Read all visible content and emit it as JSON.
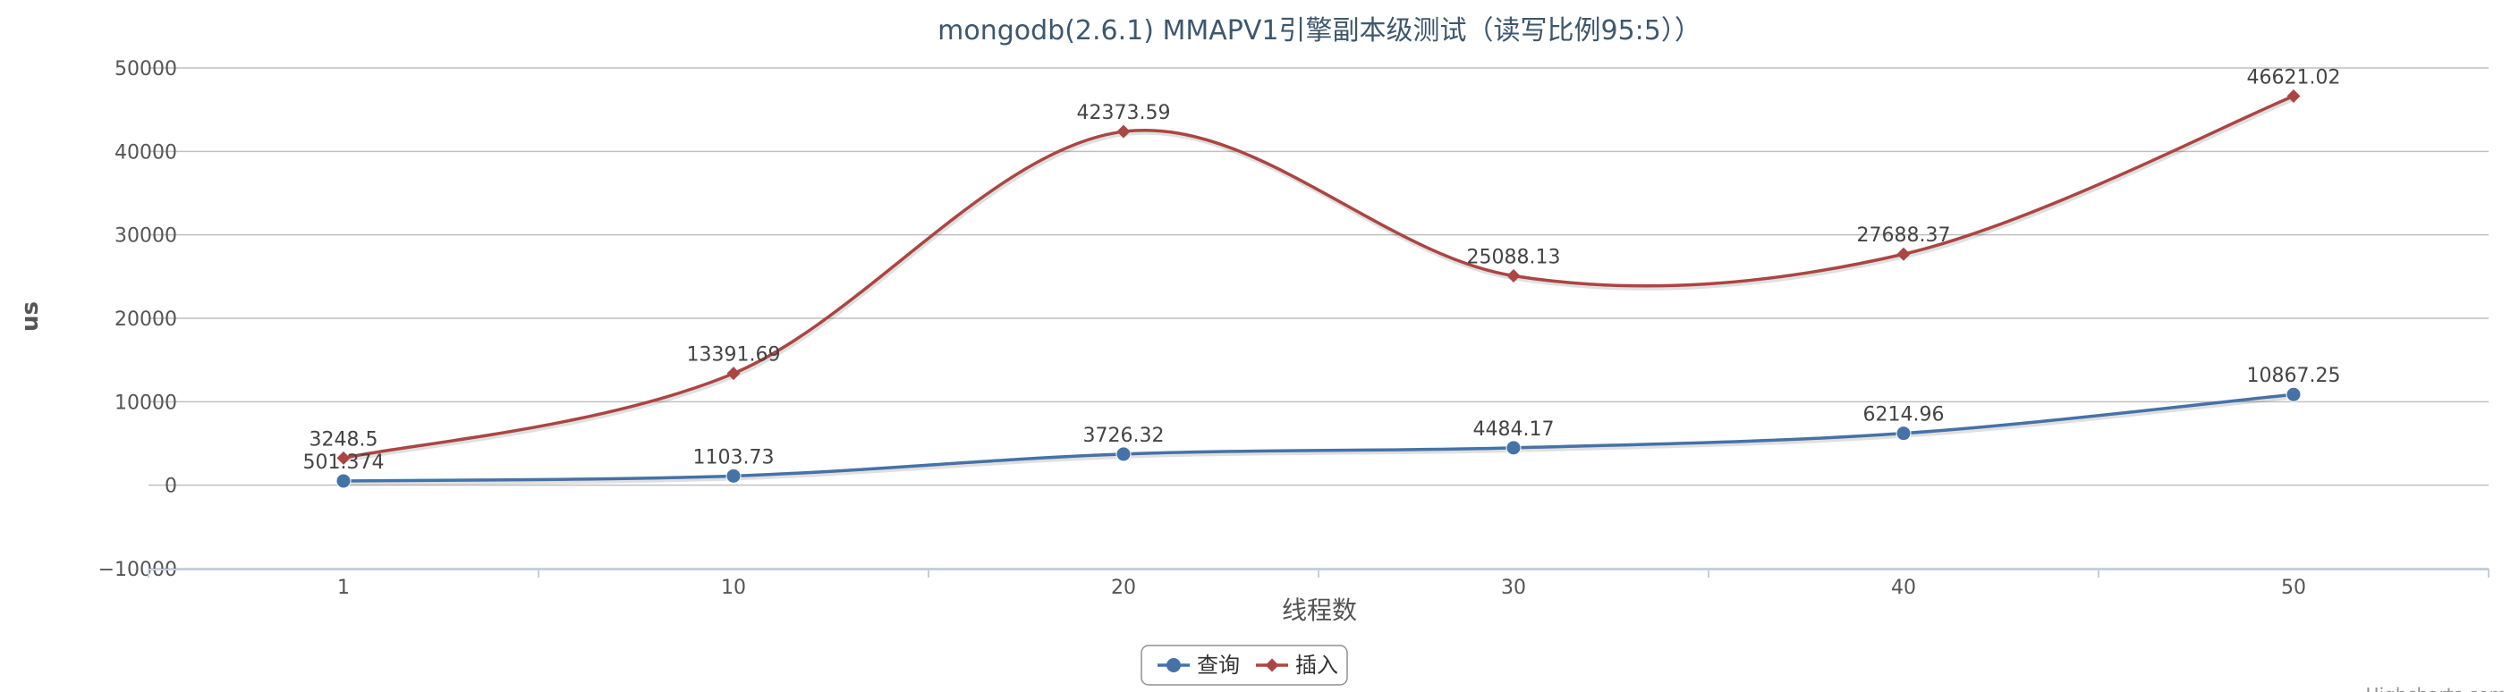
{
  "chart_data": {
    "type": "line",
    "title": "mongodb(2.6.1) MMAPV1引擎副本级测试（读写比例95:5））",
    "xlabel": "线程数",
    "ylabel": "us",
    "categories": [
      "1",
      "10",
      "20",
      "30",
      "40",
      "50"
    ],
    "ylim": [
      -10000,
      50000
    ],
    "yticks": [
      -10000,
      0,
      10000,
      20000,
      30000,
      40000,
      50000
    ],
    "grid": true,
    "legend_position": "bottom-center",
    "series": [
      {
        "name": "查询",
        "color": "#4572a7",
        "marker": "circle",
        "values": [
          501.374,
          1103.73,
          3726.32,
          4484.17,
          6214.96,
          10867.25
        ],
        "labels": [
          "501.374",
          "1103.73",
          "3726.32",
          "4484.17",
          "6214.96",
          "10867.25"
        ]
      },
      {
        "name": "插入",
        "color": "#aa4643",
        "marker": "diamond",
        "values": [
          3248.5,
          13391.69,
          42373.59,
          25088.13,
          27688.37,
          46621.02
        ],
        "labels": [
          "3248.5",
          "13391.69",
          "42373.59",
          "25088.13",
          "27688.37",
          "46621.02"
        ]
      }
    ],
    "credits": "Highcharts.com"
  }
}
